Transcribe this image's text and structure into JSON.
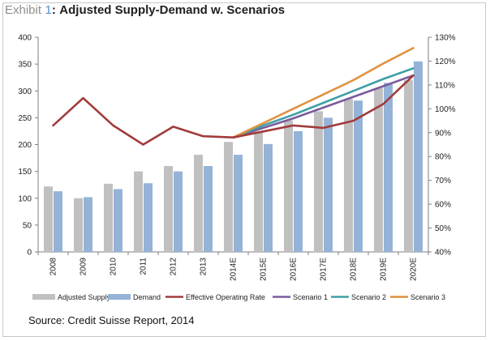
{
  "exhibit": {
    "prefix": "Exhibit",
    "number": "1",
    "separator": ":",
    "title": "Adjusted Supply-Demand w. Scenarios"
  },
  "source": "Source: Credit Suisse Report, 2014",
  "colors": {
    "adjusted_supply": "#c0c0c0",
    "demand": "#95b3d7",
    "effective_operating_rate": "#a23b3b",
    "scenario_1": "#7a5b9c",
    "scenario_2": "#3f9fa6",
    "scenario_3": "#e0923f",
    "axis": "#7f7f7f"
  },
  "chart_data": {
    "type": "bar",
    "categories": [
      "2008",
      "2009",
      "2010",
      "2011",
      "2012",
      "2013",
      "2014E",
      "2015E",
      "2016E",
      "2017E",
      "2018E",
      "2019E",
      "2020E"
    ],
    "y_left": {
      "ticks": [
        0,
        50,
        100,
        150,
        200,
        250,
        300,
        350,
        400
      ],
      "ylim": [
        0,
        400
      ]
    },
    "y_right": {
      "ticks": [
        "40%",
        "50%",
        "60%",
        "70%",
        "80%",
        "90%",
        "100%",
        "110%",
        "120%",
        "130%"
      ],
      "ylim": [
        0.4,
        1.3
      ]
    },
    "grid": false,
    "legend_position": "bottom",
    "series": [
      {
        "name": "Adjusted Supply",
        "kind": "bar",
        "axis": "left",
        "color_key": "adjusted_supply",
        "values": [
          122,
          100,
          127,
          150,
          160,
          181,
          205,
          224,
          245,
          262,
          285,
          305,
          320
        ]
      },
      {
        "name": "Demand",
        "kind": "bar",
        "axis": "left",
        "color_key": "demand",
        "values": [
          113,
          102,
          117,
          128,
          150,
          160,
          181,
          201,
          225,
          250,
          282,
          315,
          355
        ]
      },
      {
        "name": "Effective Operating Rate",
        "kind": "line",
        "axis": "right",
        "color_key": "effective_operating_rate",
        "values": [
          0.93,
          1.045,
          0.93,
          0.85,
          0.925,
          0.885,
          0.88,
          0.905,
          0.93,
          0.92,
          0.95,
          1.02,
          1.14
        ]
      },
      {
        "name": "Scenario 1",
        "kind": "line",
        "axis": "right",
        "color_key": "scenario_1",
        "values": [
          null,
          null,
          null,
          null,
          null,
          null,
          0.88,
          0.92,
          0.96,
          1.005,
          1.05,
          1.095,
          1.14
        ]
      },
      {
        "name": "Scenario 2",
        "kind": "line",
        "axis": "right",
        "color_key": "scenario_2",
        "values": [
          null,
          null,
          null,
          null,
          null,
          null,
          0.88,
          0.93,
          0.975,
          1.025,
          1.075,
          1.125,
          1.17
        ]
      },
      {
        "name": "Scenario 3",
        "kind": "line",
        "axis": "right",
        "color_key": "scenario_3",
        "values": [
          null,
          null,
          null,
          null,
          null,
          null,
          0.88,
          0.94,
          1.0,
          1.06,
          1.12,
          1.19,
          1.255
        ]
      }
    ]
  }
}
